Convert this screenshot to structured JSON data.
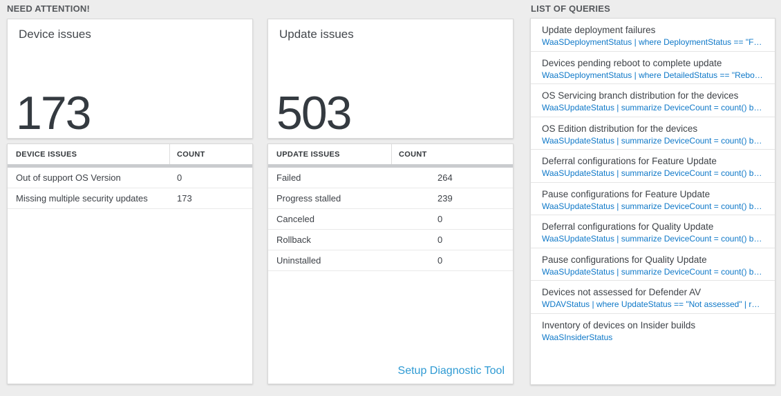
{
  "need_attention": {
    "title": "NEED ATTENTION!",
    "device_tile": {
      "title": "Device issues",
      "count": "173"
    },
    "device_table": {
      "col1": "DEVICE ISSUES",
      "col2": "COUNT",
      "rows": [
        {
          "label": "Out of support OS Version",
          "count": "0"
        },
        {
          "label": "Missing multiple security updates",
          "count": "173"
        }
      ]
    },
    "update_tile": {
      "title": "Update issues",
      "count": "503"
    },
    "update_table": {
      "col1": "UPDATE ISSUES",
      "col2": "COUNT",
      "rows": [
        {
          "label": "Failed",
          "count": "264"
        },
        {
          "label": "Progress stalled",
          "count": "239"
        },
        {
          "label": "Canceled",
          "count": "0"
        },
        {
          "label": "Rollback",
          "count": "0"
        },
        {
          "label": "Uninstalled",
          "count": "0"
        }
      ],
      "footer_link": "Setup Diagnostic Tool"
    }
  },
  "queries": {
    "title": "LIST OF QUERIES",
    "items": [
      {
        "title": "Update deployment failures",
        "query": "WaaSDeploymentStatus | where DeploymentStatus == \"Failed\" |..."
      },
      {
        "title": "Devices pending reboot to complete update",
        "query": "WaaSDeploymentStatus | where DetailedStatus == \"Reboot pend..."
      },
      {
        "title": "OS Servicing branch distribution for the devices",
        "query": "WaaSUpdateStatus | summarize DeviceCount = count() by OSSer..."
      },
      {
        "title": "OS Edition distribution for the devices",
        "query": "WaaSUpdateStatus | summarize DeviceCount = count() by OSEdit..."
      },
      {
        "title": "Deferral configurations for Feature Update",
        "query": "WaaSUpdateStatus | summarize DeviceCount = count() by Featur..."
      },
      {
        "title": "Pause configurations for Feature Update",
        "query": "WaaSUpdateStatus | summarize DeviceCount = count() by Featur..."
      },
      {
        "title": "Deferral configurations for Quality Update",
        "query": "WaaSUpdateStatus | summarize DeviceCount = count() by Qualit..."
      },
      {
        "title": "Pause configurations for Quality Update",
        "query": "WaaSUpdateStatus | summarize DeviceCount = count() by Qualit..."
      },
      {
        "title": "Devices not assessed for Defender AV",
        "query": "WDAVStatus | where UpdateStatus == \"Not assessed\" | render ta..."
      },
      {
        "title": "Inventory of devices on Insider builds",
        "query": "WaaSInsiderStatus"
      }
    ]
  },
  "colors": {
    "query_blue": "#0e78c8",
    "link_blue": "#2e9ad3",
    "big_number": "#343a40"
  }
}
